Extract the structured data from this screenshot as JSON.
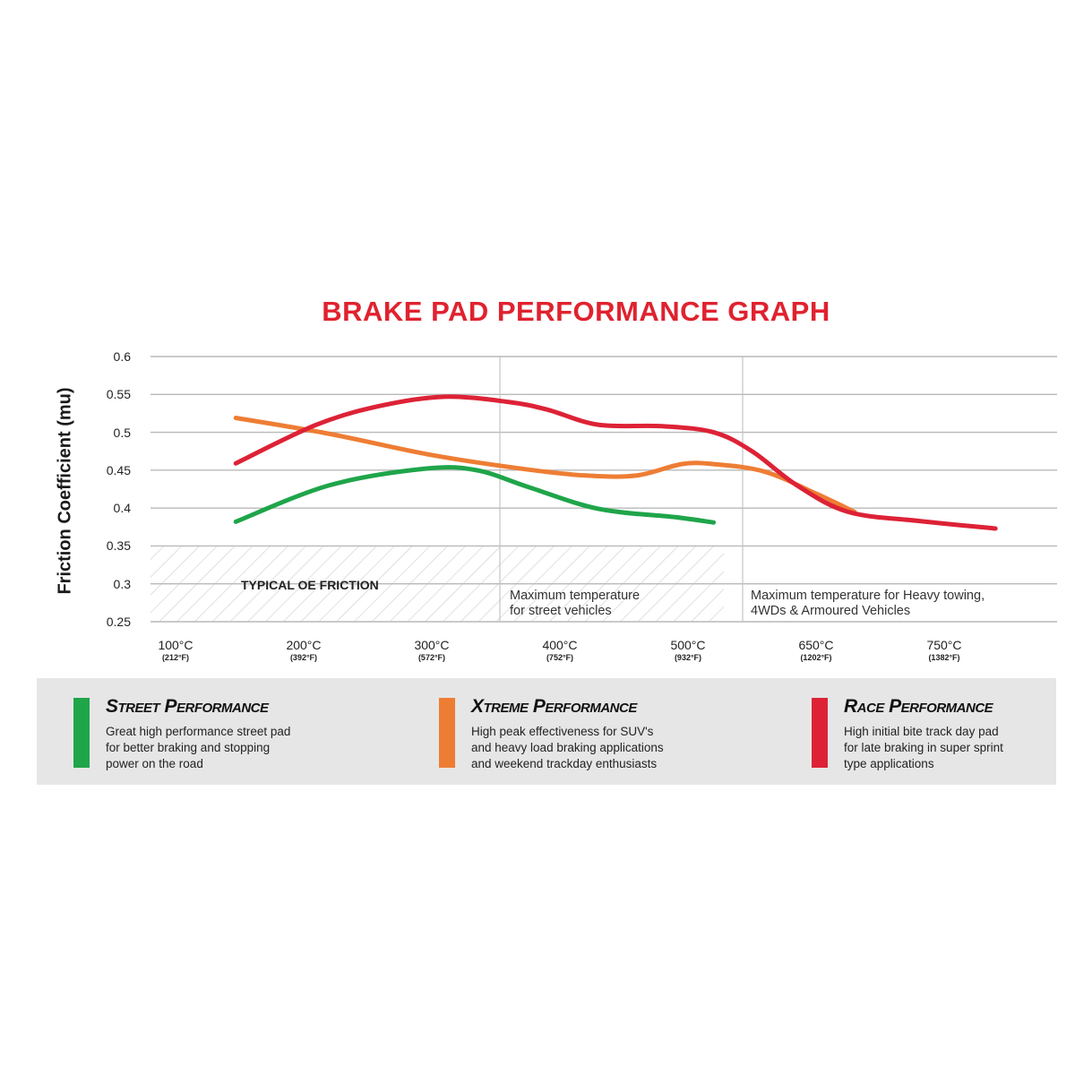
{
  "chart_data": {
    "type": "line",
    "title": "BRAKE PAD PERFORMANCE GRAPH",
    "ylabel": "Friction Coefficient (mu)",
    "ylim": [
      0.25,
      0.6
    ],
    "yticks": [
      "0.6",
      "0.55",
      "0.5",
      "0.45",
      "0.4",
      "0.35",
      "0.3",
      "0.25"
    ],
    "x_categories": [
      {
        "c": "100°C",
        "f": "(212°F)"
      },
      {
        "c": "200°C",
        "f": "(392°F)"
      },
      {
        "c": "300°C",
        "f": "(572°F)"
      },
      {
        "c": "400°C",
        "f": "(752°F)"
      },
      {
        "c": "500°C",
        "f": "(932°F)"
      },
      {
        "c": "650°C",
        "f": "(1202°F)"
      },
      {
        "c": "750°C",
        "f": "(1382°F)"
      }
    ],
    "grid": true,
    "series": [
      {
        "name": "Street Performance",
        "color": "#1fa54a",
        "points": [
          [
            0.47,
            0.382
          ],
          [
            1.2,
            0.43
          ],
          [
            1.95,
            0.452
          ],
          [
            2.35,
            0.45
          ],
          [
            2.75,
            0.428
          ],
          [
            3.3,
            0.399
          ],
          [
            3.9,
            0.388
          ],
          [
            4.2,
            0.381
          ]
        ]
      },
      {
        "name": "Xtreme Performance",
        "color": "#ee7d34",
        "points": [
          [
            0.47,
            0.519
          ],
          [
            1.2,
            0.498
          ],
          [
            2.0,
            0.47
          ],
          [
            2.7,
            0.452
          ],
          [
            3.2,
            0.443
          ],
          [
            3.6,
            0.443
          ],
          [
            3.95,
            0.458
          ],
          [
            4.2,
            0.458
          ],
          [
            4.6,
            0.448
          ],
          [
            5.0,
            0.419
          ],
          [
            5.3,
            0.395
          ]
        ]
      },
      {
        "name": "Race Performance",
        "color": "#dd2236",
        "points": [
          [
            0.47,
            0.459
          ],
          [
            1.1,
            0.51
          ],
          [
            1.6,
            0.535
          ],
          [
            2.1,
            0.547
          ],
          [
            2.6,
            0.54
          ],
          [
            2.9,
            0.53
          ],
          [
            3.3,
            0.51
          ],
          [
            3.8,
            0.508
          ],
          [
            4.2,
            0.5
          ],
          [
            4.5,
            0.475
          ],
          [
            4.85,
            0.43
          ],
          [
            5.25,
            0.395
          ],
          [
            5.8,
            0.383
          ],
          [
            6.4,
            0.373
          ]
        ]
      }
    ],
    "annotations": {
      "oe_friction": "TYPICAL OE FRICTION",
      "street_limit": [
        "Maximum temperature",
        "for street vehicles"
      ],
      "heavy_limit": [
        "Maximum temperature for Heavy towing,",
        "4WDs & Armoured Vehicles"
      ]
    }
  },
  "legend": [
    {
      "title": "Street Performance",
      "color": "#1fa54a",
      "lines": [
        "Great high performance street pad",
        "for better braking and stopping",
        "power on the road"
      ]
    },
    {
      "title": "Xtreme Performance",
      "color": "#ee7d34",
      "lines": [
        "High peak effectiveness for SUV's",
        "and heavy load braking applications",
        "and weekend trackday enthusiasts"
      ]
    },
    {
      "title": "Race Performance",
      "color": "#dd2236",
      "lines": [
        "High initial bite track day pad",
        "for late braking in super sprint",
        "type applications"
      ]
    }
  ]
}
